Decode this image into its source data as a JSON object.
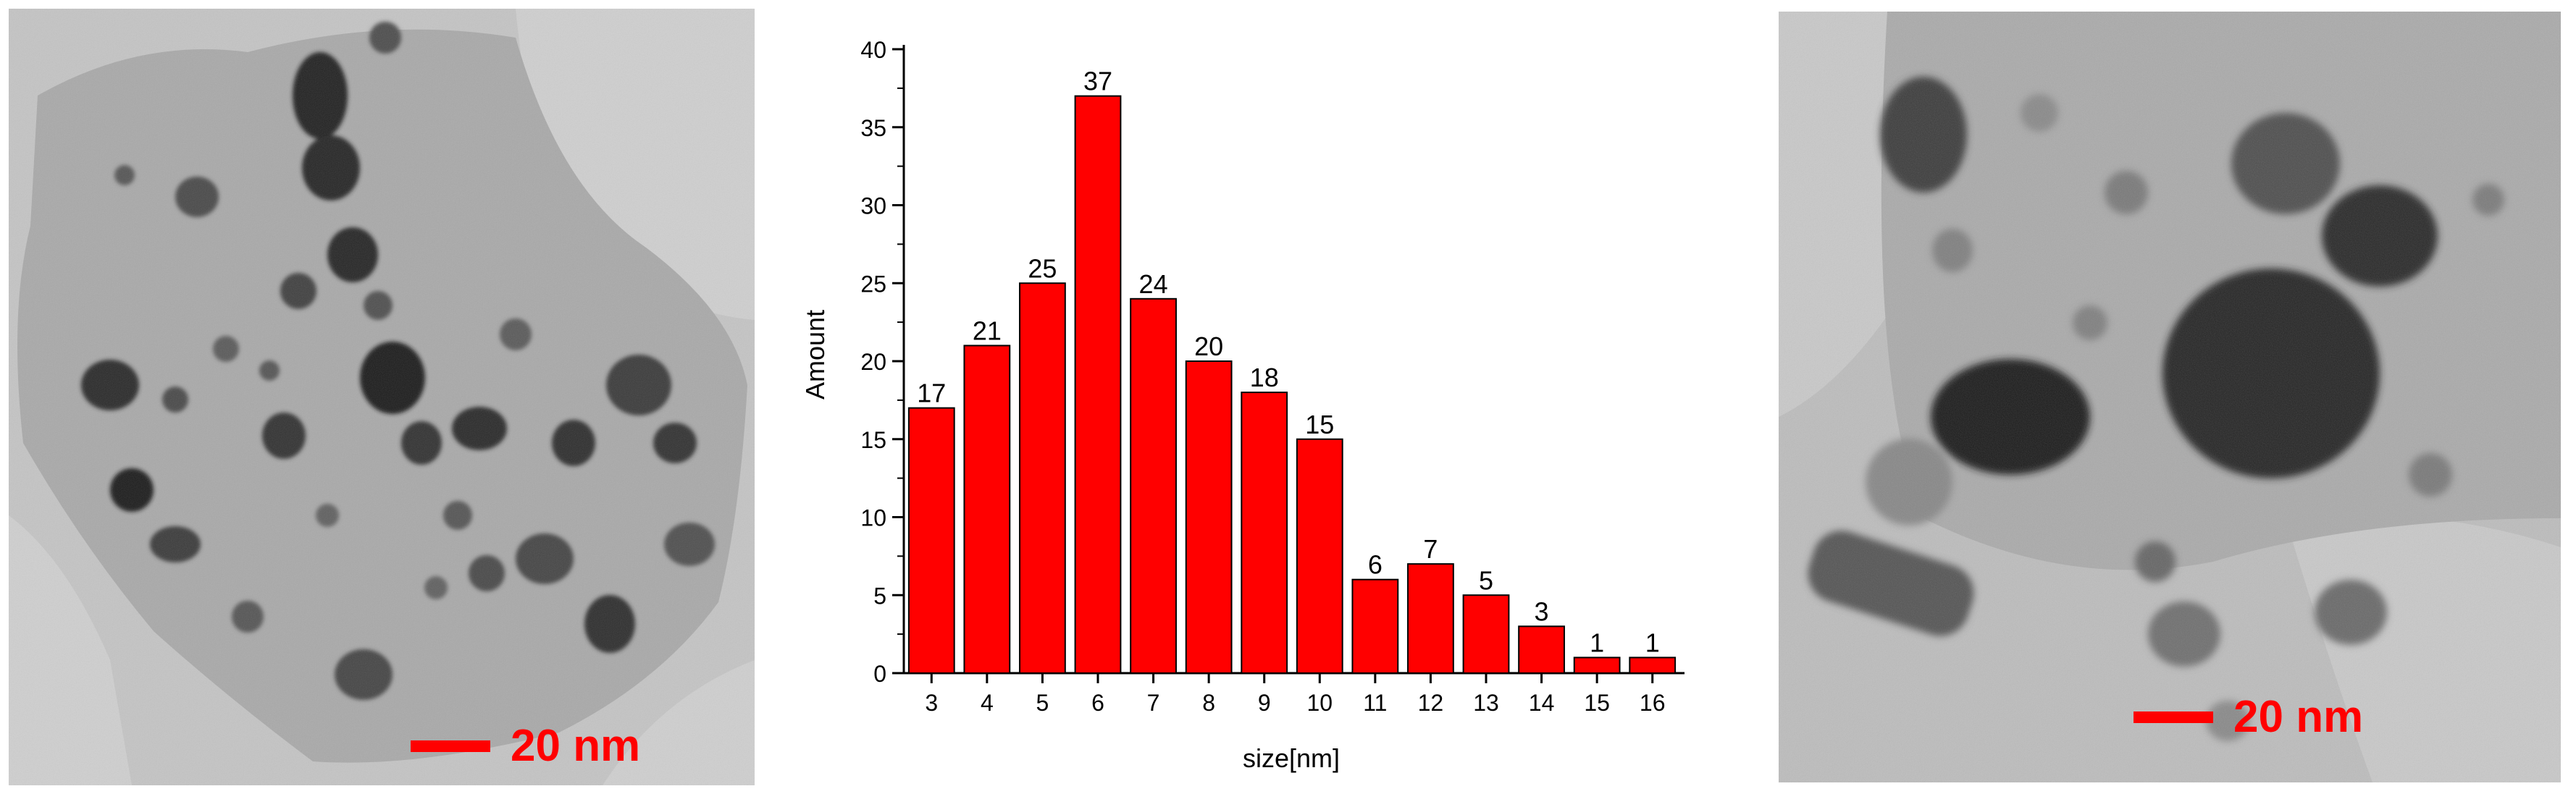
{
  "left_image": {
    "scale_label": "20 nm",
    "scale_color": "#ff0000"
  },
  "right_image": {
    "scale_label": "20 nm",
    "scale_color": "#ff0000"
  },
  "chart_data": {
    "type": "bar",
    "categories": [
      "3",
      "4",
      "5",
      "6",
      "7",
      "8",
      "9",
      "10",
      "11",
      "12",
      "13",
      "14",
      "15",
      "16"
    ],
    "values": [
      17,
      21,
      25,
      37,
      24,
      20,
      18,
      15,
      6,
      7,
      5,
      3,
      1,
      1
    ],
    "data_labels": [
      "17",
      "21",
      "25",
      "37",
      "24",
      "20",
      "18",
      "15",
      "6",
      "7",
      "5",
      "3",
      "1",
      "1"
    ],
    "xlabel": "size[nm]",
    "ylabel": "Amount",
    "ylim": [
      0,
      40
    ],
    "yticks": [
      0,
      5,
      10,
      15,
      20,
      25,
      30,
      35,
      40
    ],
    "bar_color": "#ff0000",
    "grid": false,
    "legend": "none"
  }
}
